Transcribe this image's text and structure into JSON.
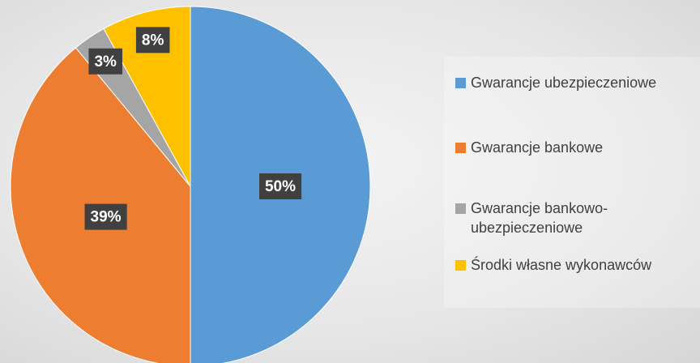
{
  "chart_data": {
    "type": "pie",
    "categories": [
      "Gwarancje ubezpieczeniowe",
      "Gwarancje bankowe",
      "Gwarancje bankowo-ubezpieczeniowe",
      "Środki własne wykonawców"
    ],
    "values": [
      50,
      39,
      3,
      8
    ],
    "value_labels": [
      "50%",
      "39%",
      "3%",
      "8%"
    ],
    "colors": [
      "#5b9bd5",
      "#ed7d31",
      "#a5a5a5",
      "#ffc000"
    ],
    "legend": "right"
  }
}
